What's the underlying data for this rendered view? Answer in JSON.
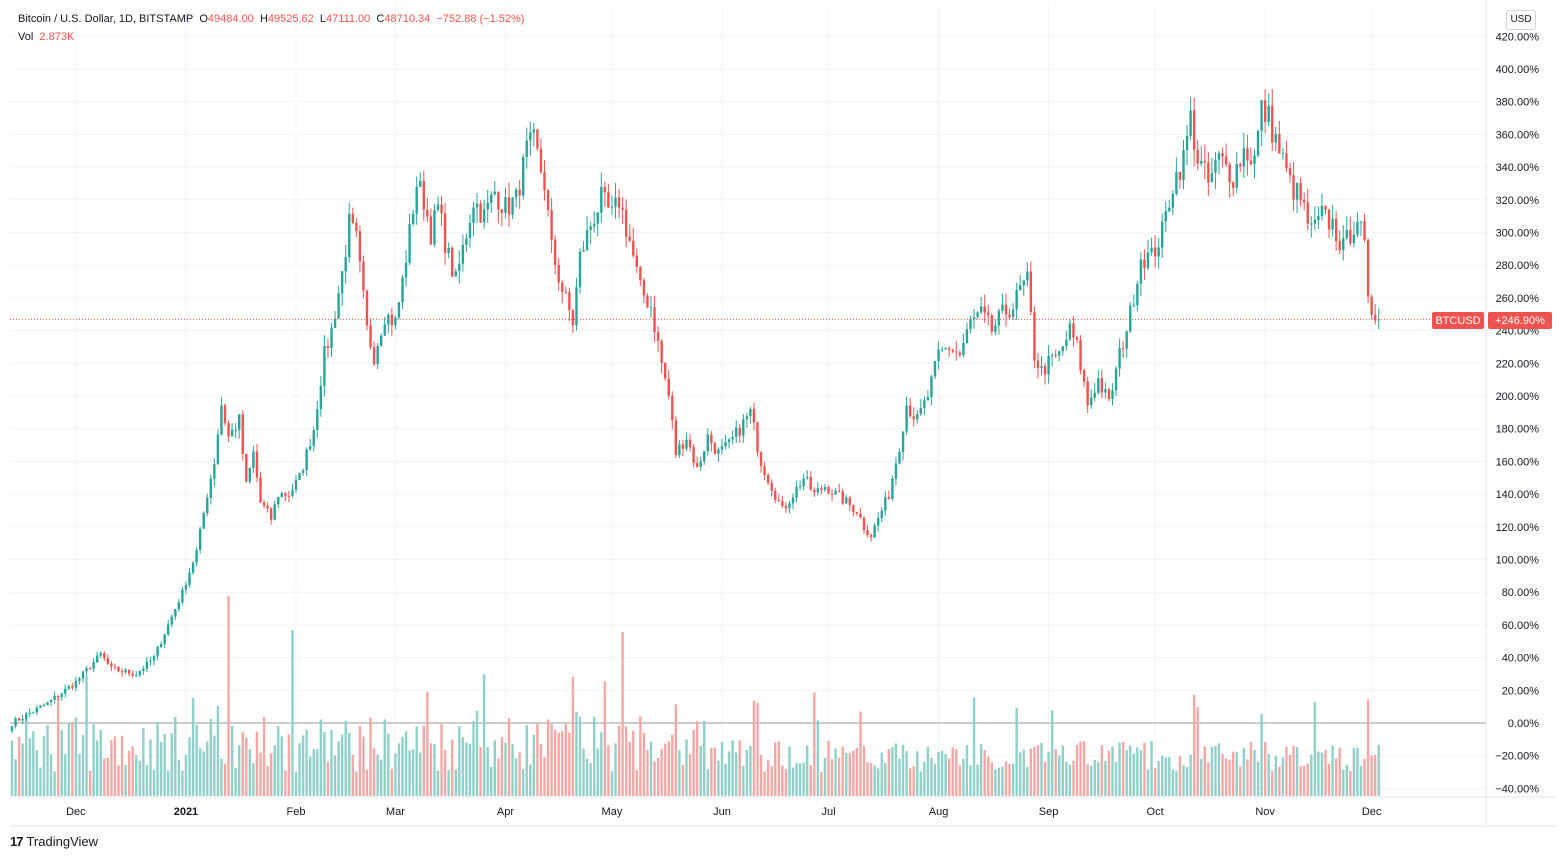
{
  "header": {
    "symbol_desc": "Bitcoin / U.S. Dollar, 1D, BITSTAMP",
    "open_label": "O",
    "open_value": "49484.00",
    "high_label": "H",
    "high_value": "49525.62",
    "low_label": "L",
    "low_value": "47111.00",
    "close_label": "C",
    "close_value": "48710.34",
    "change": "−752.88 (−1.52%)",
    "vol_label": "Vol",
    "vol_value": "2.873K"
  },
  "currency_button": "USD",
  "price_badge": {
    "symbol": "BTCUSD",
    "value": "+246.90%"
  },
  "footer": {
    "logo_glyph": "17",
    "brand": "TradingView"
  },
  "colors": {
    "up": "#26a69a",
    "down": "#ef5350",
    "up_vol": "#8fd0c8",
    "down_vol": "#f4a8a6",
    "grid": "#f0f3fa"
  },
  "chart_data": {
    "type": "candlestick",
    "y_axis": {
      "unit": "percent",
      "ticks": [
        420,
        400,
        380,
        360,
        340,
        320,
        300,
        280,
        260,
        240,
        220,
        200,
        180,
        160,
        140,
        120,
        100,
        80,
        60,
        40,
        20,
        0,
        -20,
        -40
      ],
      "tick_labels": [
        "420.00%",
        "400.00%",
        "380.00%",
        "360.00%",
        "340.00%",
        "320.00%",
        "300.00%",
        "280.00%",
        "260.00%",
        "240.00%",
        "220.00%",
        "200.00%",
        "180.00%",
        "160.00%",
        "140.00%",
        "120.00%",
        "100.00%",
        "80.00%",
        "60.00%",
        "40.00%",
        "20.00%",
        "0.00%",
        "−20.00%",
        "−40.00%"
      ]
    },
    "x_axis": {
      "labels": [
        "Dec",
        "2021",
        "Feb",
        "Mar",
        "Apr",
        "May",
        "Jun",
        "Jul",
        "Aug",
        "Sep",
        "Oct",
        "Nov",
        "Dec"
      ],
      "label_day_index": [
        18,
        49,
        80,
        108,
        139,
        169,
        200,
        230,
        261,
        292,
        322,
        353,
        383
      ]
    },
    "last_value": 246.9,
    "anchors": [
      [
        0,
        0
      ],
      [
        10,
        12
      ],
      [
        18,
        25
      ],
      [
        25,
        42
      ],
      [
        28,
        33
      ],
      [
        35,
        30
      ],
      [
        40,
        40
      ],
      [
        45,
        65
      ],
      [
        48,
        80
      ],
      [
        52,
        105
      ],
      [
        55,
        140
      ],
      [
        57,
        160
      ],
      [
        59,
        195
      ],
      [
        61,
        175
      ],
      [
        64,
        185
      ],
      [
        66,
        145
      ],
      [
        68,
        165
      ],
      [
        70,
        135
      ],
      [
        73,
        125
      ],
      [
        75,
        140
      ],
      [
        78,
        140
      ],
      [
        81,
        150
      ],
      [
        85,
        180
      ],
      [
        88,
        225
      ],
      [
        90,
        240
      ],
      [
        93,
        275
      ],
      [
        95,
        305
      ],
      [
        97,
        295
      ],
      [
        100,
        240
      ],
      [
        102,
        225
      ],
      [
        105,
        250
      ],
      [
        108,
        245
      ],
      [
        110,
        270
      ],
      [
        114,
        330
      ],
      [
        116,
        320
      ],
      [
        118,
        300
      ],
      [
        120,
        315
      ],
      [
        123,
        285
      ],
      [
        125,
        270
      ],
      [
        128,
        300
      ],
      [
        130,
        320
      ],
      [
        133,
        310
      ],
      [
        136,
        325
      ],
      [
        139,
        315
      ],
      [
        142,
        320
      ],
      [
        145,
        350
      ],
      [
        147,
        355
      ],
      [
        150,
        330
      ],
      [
        152,
        290
      ],
      [
        155,
        265
      ],
      [
        158,
        245
      ],
      [
        160,
        285
      ],
      [
        163,
        305
      ],
      [
        166,
        320
      ],
      [
        169,
        310
      ],
      [
        171,
        320
      ],
      [
        174,
        295
      ],
      [
        177,
        265
      ],
      [
        180,
        255
      ],
      [
        183,
        220
      ],
      [
        185,
        200
      ],
      [
        187,
        165
      ],
      [
        190,
        175
      ],
      [
        193,
        155
      ],
      [
        196,
        175
      ],
      [
        199,
        165
      ],
      [
        202,
        170
      ],
      [
        205,
        180
      ],
      [
        208,
        190
      ],
      [
        211,
        160
      ],
      [
        214,
        145
      ],
      [
        217,
        130
      ],
      [
        220,
        140
      ],
      [
        223,
        150
      ],
      [
        226,
        140
      ],
      [
        229,
        145
      ],
      [
        232,
        140
      ],
      [
        235,
        135
      ],
      [
        238,
        130
      ],
      [
        240,
        120
      ],
      [
        242,
        115
      ],
      [
        244,
        125
      ],
      [
        247,
        140
      ],
      [
        250,
        170
      ],
      [
        252,
        195
      ],
      [
        255,
        185
      ],
      [
        258,
        200
      ],
      [
        261,
        225
      ],
      [
        264,
        230
      ],
      [
        267,
        225
      ],
      [
        270,
        245
      ],
      [
        273,
        250
      ],
      [
        276,
        240
      ],
      [
        279,
        250
      ],
      [
        282,
        255
      ],
      [
        284,
        265
      ],
      [
        286,
        270
      ],
      [
        288,
        225
      ],
      [
        290,
        215
      ],
      [
        292,
        220
      ],
      [
        295,
        225
      ],
      [
        298,
        240
      ],
      [
        300,
        230
      ],
      [
        303,
        195
      ],
      [
        306,
        210
      ],
      [
        309,
        195
      ],
      [
        312,
        225
      ],
      [
        315,
        250
      ],
      [
        318,
        285
      ],
      [
        321,
        285
      ],
      [
        324,
        300
      ],
      [
        327,
        330
      ],
      [
        330,
        345
      ],
      [
        332,
        370
      ],
      [
        334,
        345
      ],
      [
        337,
        330
      ],
      [
        340,
        345
      ],
      [
        344,
        335
      ],
      [
        347,
        350
      ],
      [
        350,
        345
      ],
      [
        352,
        375
      ],
      [
        354,
        370
      ],
      [
        357,
        350
      ],
      [
        360,
        330
      ],
      [
        363,
        320
      ],
      [
        366,
        300
      ],
      [
        369,
        310
      ],
      [
        372,
        305
      ],
      [
        375,
        290
      ],
      [
        377,
        300
      ],
      [
        379,
        310
      ],
      [
        381,
        290
      ],
      [
        382,
        255
      ],
      [
        384,
        250
      ],
      [
        385,
        248
      ]
    ],
    "notable_volume_spikes": [
      {
        "day": 61,
        "relative": 1.0
      },
      {
        "day": 79,
        "relative": 0.83
      },
      {
        "day": 172,
        "relative": 0.82
      }
    ]
  }
}
